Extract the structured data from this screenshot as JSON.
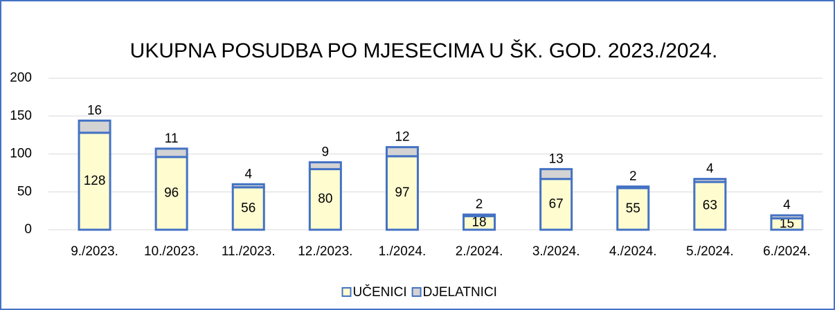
{
  "chart_data": {
    "type": "stacked_bar",
    "title": "UKUPNA POSUDBA PO MJESECIMA U ŠK. GOD. 2023./2024.",
    "categories": [
      "9./2023.",
      "10./2023.",
      "11./2023.",
      "12./2023.",
      "1./2024.",
      "2./2024.",
      "3./2024.",
      "4./2024.",
      "5./2024.",
      "6./2024."
    ],
    "series": [
      {
        "name": "UČENICI",
        "color": "#fffdd0",
        "values": [
          128,
          96,
          56,
          80,
          97,
          18,
          67,
          55,
          63,
          15
        ]
      },
      {
        "name": "DJELATNICI",
        "color": "#d3d3d3",
        "values": [
          16,
          11,
          4,
          9,
          12,
          2,
          13,
          2,
          4,
          4
        ]
      }
    ],
    "edgecolor": "#4472c4",
    "ylim": [
      0,
      200
    ],
    "yticks": [
      0,
      50,
      100,
      150,
      200
    ],
    "grid": true,
    "legend": "bottom"
  }
}
